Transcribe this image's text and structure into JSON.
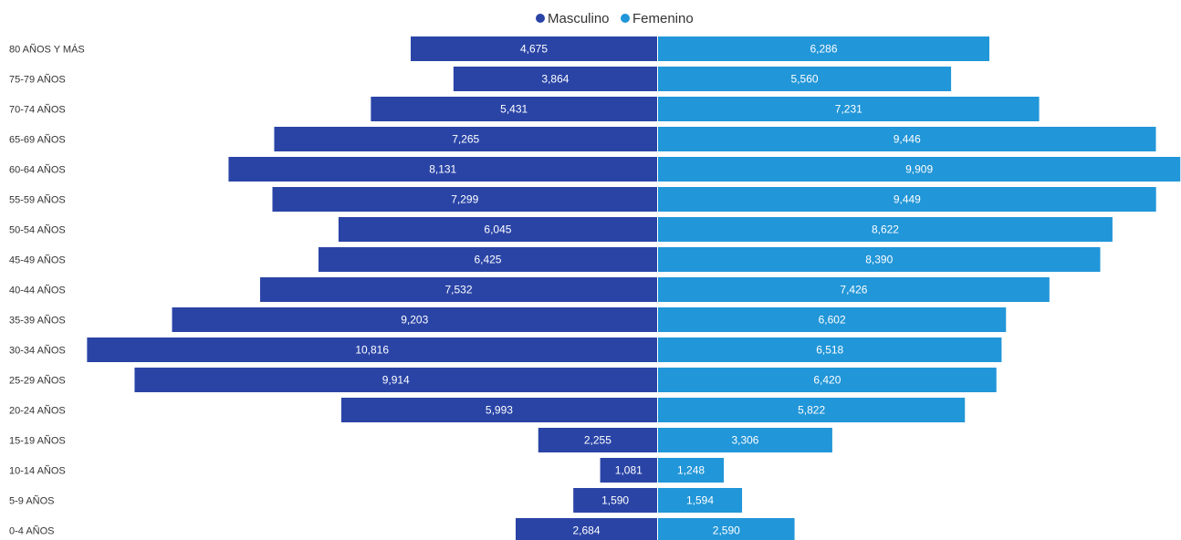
{
  "chart_data": {
    "type": "bar",
    "orientation": "horizontal",
    "layout": "population-pyramid",
    "legend_position": "top-center",
    "categories": [
      "80 AÑOS Y MÁS",
      "75-79 AÑOS",
      "70-74 AÑOS",
      "65-69 AÑOS",
      "60-64 AÑOS",
      "55-59 AÑOS",
      "50-54 AÑOS",
      "45-49 AÑOS",
      "40-44 AÑOS",
      "35-39 AÑOS",
      "30-34 AÑOS",
      "25-29 AÑOS",
      "20-24 AÑOS",
      "15-19 AÑOS",
      "10-14 AÑOS",
      "5-9 AÑOS",
      "0-4 AÑOS"
    ],
    "series": [
      {
        "name": "Masculino",
        "color": "#2a44a6",
        "values": [
          4675,
          3864,
          5431,
          7265,
          8131,
          7299,
          6045,
          6425,
          7532,
          9203,
          10816,
          9914,
          5993,
          2255,
          1081,
          1590,
          2684
        ]
      },
      {
        "name": "Femenino",
        "color": "#2196d8",
        "values": [
          6286,
          5560,
          7231,
          9446,
          9909,
          9449,
          8622,
          8390,
          7426,
          6602,
          6518,
          6420,
          5822,
          3306,
          1248,
          1594,
          2590
        ]
      }
    ],
    "value_labels": {
      "Masculino": [
        "4,675",
        "3,864",
        "5,431",
        "7,265",
        "8,131",
        "7,299",
        "6,045",
        "6,425",
        "7,532",
        "9,203",
        "10,816",
        "9,914",
        "5,993",
        "2,255",
        "1,081",
        "1,590",
        "2,684"
      ],
      "Femenino": [
        "6,286",
        "5,560",
        "7,231",
        "9,446",
        "9,909",
        "9,449",
        "8,622",
        "8,390",
        "7,426",
        "6,602",
        "6,518",
        "6,420",
        "5,822",
        "3,306",
        "1,248",
        "1,594",
        "2,590"
      ]
    }
  }
}
